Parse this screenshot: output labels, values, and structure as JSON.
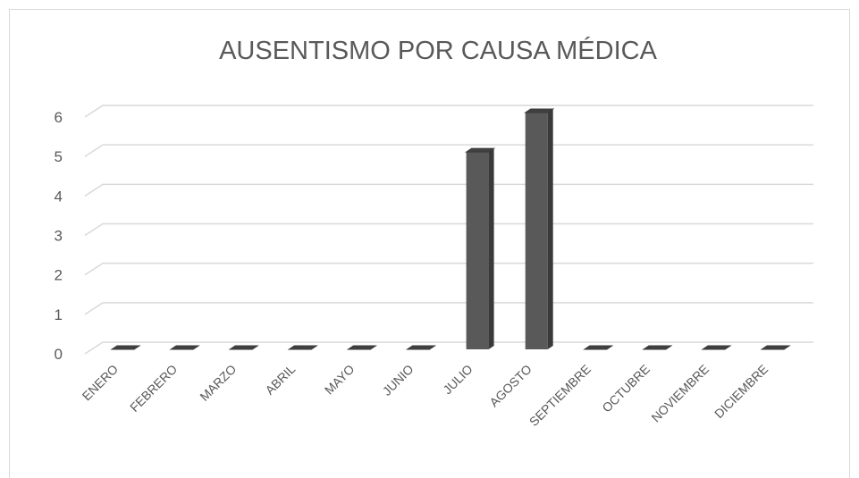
{
  "chart_data": {
    "type": "bar3d",
    "title": "AUSENTISMO POR CAUSA MÉDICA",
    "categories": [
      "ENERO",
      "FEBRERO",
      "MARZO",
      "ABRIL",
      "MAYO",
      "JUNIO",
      "JULIO",
      "AGOSTO",
      "SEPTIEMBRE",
      "OCTUBRE",
      "NOVIEMBRE",
      "DICIEMBRE"
    ],
    "values": [
      0,
      0,
      0,
      0,
      0,
      0,
      5,
      6,
      0,
      0,
      0,
      0
    ],
    "color": "#595959",
    "ylim": [
      0,
      6
    ],
    "yticks": [
      0,
      1,
      2,
      3,
      4,
      5,
      6
    ],
    "grid": true
  }
}
